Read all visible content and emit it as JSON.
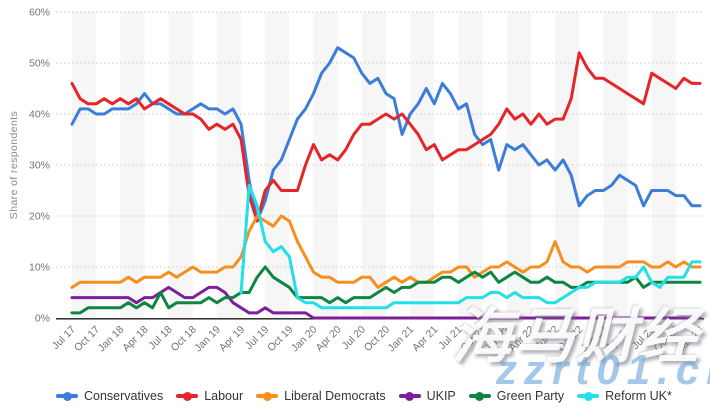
{
  "watermark": {
    "text_primary": "海马财经",
    "text_secondary": "zzrt01.cn"
  },
  "chart_data": {
    "type": "line",
    "title": "",
    "ylabel": "Share of respondents",
    "ylim": [
      0,
      60
    ],
    "yticks": [
      0,
      10,
      20,
      30,
      40,
      50,
      60
    ],
    "ytick_labels": [
      "0%",
      "10%",
      "20%",
      "30%",
      "40%",
      "50%",
      "60%"
    ],
    "grid": "horizontal-dotted",
    "plot_bands": "alternating quarterly vertical bands",
    "legend_position": "bottom",
    "months_per_point": 1,
    "points_per_tick": 3,
    "x_start": "Jul 17",
    "x_end": "Jan 24",
    "x_tick_labels": [
      "Jul 17",
      "Oct 17",
      "Jan 18",
      "Apr 18",
      "Jul 18",
      "Oct 18",
      "Jan 19",
      "Apr 19",
      "Jul 19",
      "Oct 19",
      "Jan 20",
      "Apr 20",
      "Jul 20",
      "Oct 20",
      "Jan 21",
      "Apr 21",
      "Jul 21",
      "Oct 21",
      "Jan 22",
      "Apr 22",
      "Jul 22",
      "Oct 22",
      "Jan 23",
      "Apr 23",
      "Jul 23",
      "Oct 23",
      "Jan 24"
    ],
    "series": [
      {
        "name": "Conservatives",
        "color": "#3b7dd8",
        "values": [
          38,
          41,
          41,
          40,
          40,
          41,
          41,
          41,
          42,
          44,
          42,
          42,
          41,
          40,
          40,
          41,
          42,
          41,
          41,
          40,
          41,
          38,
          27,
          19,
          23,
          29,
          31,
          35,
          39,
          41,
          44,
          48,
          50,
          53,
          52,
          51,
          48,
          46,
          47,
          44,
          43,
          36,
          40,
          42,
          45,
          42,
          46,
          44,
          41,
          42,
          36,
          34,
          35,
          29,
          34,
          33,
          34,
          32,
          30,
          31,
          29,
          31,
          28,
          22,
          24,
          25,
          25,
          26,
          28,
          27,
          26,
          22,
          25,
          25,
          25,
          24,
          24,
          22,
          22
        ]
      },
      {
        "name": "Labour",
        "color": "#e5252a",
        "values": [
          46,
          43,
          42,
          42,
          43,
          42,
          43,
          42,
          43,
          41,
          42,
          43,
          42,
          41,
          40,
          40,
          39,
          37,
          38,
          37,
          38,
          35,
          24,
          19,
          25,
          27,
          25,
          25,
          25,
          30,
          34,
          31,
          32,
          31,
          33,
          36,
          38,
          38,
          39,
          40,
          39,
          40,
          38,
          36,
          33,
          34,
          31,
          32,
          33,
          33,
          34,
          35,
          36,
          38,
          41,
          39,
          40,
          38,
          40,
          38,
          39,
          39,
          43,
          52,
          49,
          47,
          47,
          46,
          45,
          44,
          43,
          42,
          48,
          47,
          46,
          45,
          47,
          46,
          46
        ]
      },
      {
        "name": "Liberal Democrats",
        "color": "#f78f1e",
        "values": [
          6,
          7,
          7,
          7,
          7,
          7,
          7,
          8,
          7,
          8,
          8,
          8,
          9,
          8,
          9,
          10,
          9,
          9,
          9,
          10,
          10,
          12,
          17,
          20,
          19,
          18,
          20,
          19,
          15,
          12,
          9,
          8,
          8,
          7,
          7,
          7,
          8,
          8,
          6,
          7,
          8,
          7,
          8,
          7,
          7,
          8,
          9,
          9,
          10,
          10,
          8,
          9,
          10,
          10,
          11,
          10,
          9,
          10,
          10,
          11,
          15,
          11,
          10,
          10,
          9,
          10,
          10,
          10,
          10,
          11,
          11,
          11,
          10,
          10,
          11,
          10,
          11,
          10,
          10
        ]
      },
      {
        "name": "UKIP",
        "color": "#7d2097",
        "values": [
          4,
          4,
          4,
          4,
          4,
          4,
          4,
          4,
          3,
          4,
          4,
          5,
          6,
          5,
          4,
          4,
          5,
          6,
          6,
          5,
          3,
          2,
          1,
          1,
          2,
          1,
          1,
          1,
          1,
          1,
          0,
          0,
          0,
          0,
          0,
          0,
          0,
          0,
          0,
          0,
          0,
          0,
          0,
          0,
          0,
          0,
          0,
          0,
          0,
          0,
          0,
          0,
          0,
          0,
          0,
          0,
          0,
          0,
          0,
          0,
          0,
          0,
          0,
          0,
          0,
          0,
          0,
          0,
          0,
          0,
          0,
          0,
          0,
          0,
          0,
          0,
          0,
          0,
          0
        ]
      },
      {
        "name": "Green Party",
        "color": "#0e8542",
        "values": [
          1,
          1,
          2,
          2,
          2,
          2,
          2,
          3,
          2,
          3,
          2,
          5,
          2,
          3,
          3,
          3,
          3,
          4,
          3,
          4,
          4,
          5,
          5,
          8,
          10,
          8,
          7,
          6,
          4,
          4,
          4,
          4,
          3,
          4,
          3,
          4,
          4,
          4,
          5,
          6,
          5,
          6,
          6,
          7,
          7,
          7,
          8,
          8,
          7,
          8,
          9,
          8,
          9,
          7,
          8,
          9,
          8,
          7,
          7,
          8,
          7,
          7,
          6,
          6,
          7,
          7,
          7,
          7,
          7,
          7,
          8,
          6,
          7,
          7,
          7,
          7,
          7,
          7,
          7
        ]
      },
      {
        "name": "Reform UK*",
        "color": "#22dfe8",
        "values": [
          null,
          null,
          null,
          null,
          null,
          null,
          null,
          null,
          null,
          null,
          null,
          null,
          null,
          null,
          null,
          null,
          null,
          null,
          null,
          null,
          null,
          5,
          26,
          22,
          15,
          13,
          14,
          12,
          4,
          3,
          3,
          2,
          2,
          2,
          2,
          2,
          2,
          2,
          2,
          2,
          3,
          3,
          3,
          3,
          3,
          3,
          3,
          3,
          3,
          4,
          4,
          4,
          5,
          5,
          4,
          5,
          4,
          4,
          4,
          3,
          3,
          4,
          5,
          6,
          6,
          7,
          7,
          7,
          7,
          8,
          8,
          10,
          7,
          6,
          8,
          8,
          8,
          11,
          11
        ]
      }
    ]
  }
}
